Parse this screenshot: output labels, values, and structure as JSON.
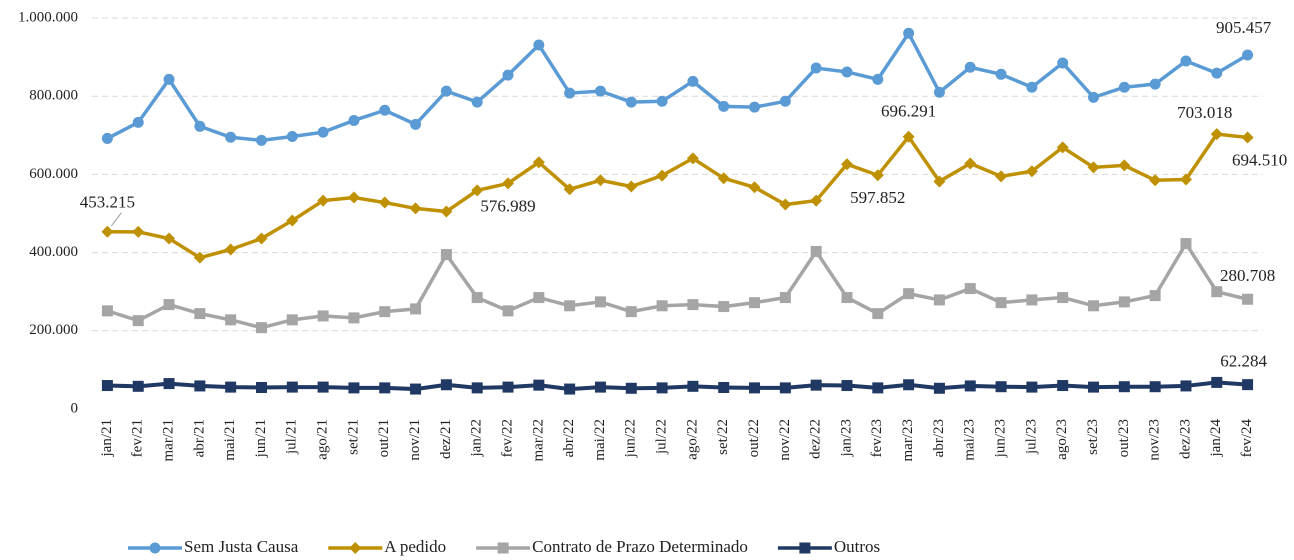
{
  "chart_data": {
    "type": "line",
    "categories": [
      "jan/21",
      "fev/21",
      "mar/21",
      "abr/21",
      "mai/21",
      "jun/21",
      "jul/21",
      "ago/21",
      "set/21",
      "out/21",
      "nov/21",
      "dez/21",
      "jan/22",
      "fev/22",
      "mar/22",
      "abr/22",
      "mai/22",
      "jun/22",
      "jul/22",
      "ago/22",
      "set/22",
      "out/22",
      "nov/22",
      "dez/22",
      "jan/23",
      "fev/23",
      "mar/23",
      "abr/23",
      "mai/23",
      "jun/23",
      "jul/23",
      "ago/23",
      "set/23",
      "out/23",
      "nov/23",
      "dez/23",
      "jan/24",
      "fev/24"
    ],
    "ylim": [
      0,
      1000000
    ],
    "yticks": [
      0,
      {
        "value": 200000,
        "label": "200.000"
      },
      {
        "value": 400000,
        "label": "400.000"
      },
      {
        "value": 600000,
        "label": "600.000"
      },
      {
        "value": 800000,
        "label": "800.000"
      },
      {
        "value": 1000000,
        "label": "1.000.000"
      }
    ],
    "grid": true,
    "legend": "bottom",
    "series": [
      {
        "name": "Sem Justa Causa",
        "color": "#5b9bd5",
        "marker": "circle",
        "values": [
          692000,
          733000,
          843000,
          723000,
          695000,
          687000,
          697000,
          708000,
          738000,
          764000,
          728000,
          813000,
          785000,
          854000,
          931000,
          808000,
          813000,
          785000,
          787000,
          838000,
          774000,
          772000,
          787000,
          872000,
          862000,
          843000,
          961000,
          810000,
          874000,
          856000,
          823000,
          885000,
          797000,
          823000,
          831000,
          890000,
          859000,
          905457
        ],
        "value_labels": [
          null,
          null,
          null,
          null,
          null,
          null,
          null,
          null,
          null,
          null,
          null,
          null,
          null,
          null,
          null,
          null,
          null,
          null,
          null,
          null,
          null,
          null,
          null,
          null,
          null,
          null,
          null,
          null,
          null,
          null,
          null,
          null,
          null,
          null,
          null,
          null,
          null,
          "905.457"
        ]
      },
      {
        "name": "A pedido",
        "color": "#bf9000",
        "marker": "diamond",
        "values": [
          453215,
          453000,
          436000,
          387000,
          408000,
          436000,
          482000,
          533000,
          541000,
          528000,
          513000,
          505000,
          559000,
          576989,
          631000,
          562000,
          585000,
          569000,
          597000,
          641000,
          590000,
          567000,
          523000,
          533000,
          626000,
          597852,
          696291,
          582000,
          628000,
          595000,
          608000,
          669000,
          618000,
          623000,
          585000,
          587000,
          703018,
          694510
        ],
        "value_labels": [
          "453.215",
          null,
          null,
          null,
          null,
          null,
          null,
          null,
          null,
          null,
          null,
          null,
          null,
          "576.989",
          null,
          null,
          null,
          null,
          null,
          null,
          null,
          null,
          null,
          null,
          null,
          "597.852",
          "696.291",
          null,
          null,
          null,
          null,
          null,
          null,
          null,
          null,
          null,
          "703.018",
          "694.510"
        ]
      },
      {
        "name": "Contrato de Prazo Determinado",
        "color": "#a5a5a5",
        "marker": "square",
        "values": [
          251000,
          226000,
          267000,
          244000,
          228000,
          208000,
          228000,
          238000,
          233000,
          249000,
          256000,
          395000,
          285000,
          251000,
          285000,
          264000,
          274000,
          249000,
          264000,
          267000,
          262000,
          272000,
          285000,
          403000,
          285000,
          244000,
          295000,
          279000,
          308000,
          272000,
          279000,
          285000,
          264000,
          274000,
          290000,
          423000,
          300000,
          280708
        ],
        "value_labels": [
          null,
          null,
          null,
          null,
          null,
          null,
          null,
          null,
          null,
          null,
          null,
          null,
          null,
          null,
          null,
          null,
          null,
          null,
          null,
          null,
          null,
          null,
          null,
          null,
          null,
          null,
          null,
          null,
          null,
          null,
          null,
          null,
          null,
          null,
          null,
          null,
          null,
          "280.708"
        ]
      },
      {
        "name": "Outros",
        "color": "#203864",
        "marker": "square",
        "values": [
          60000,
          58000,
          65000,
          59000,
          56000,
          55000,
          56000,
          56000,
          54000,
          54000,
          51000,
          62000,
          54000,
          56000,
          61000,
          51000,
          56000,
          53000,
          54000,
          58000,
          55000,
          54000,
          54000,
          61000,
          60000,
          54000,
          62000,
          53000,
          59000,
          57000,
          56000,
          60000,
          56000,
          57000,
          57000,
          59000,
          68000,
          62284
        ],
        "value_labels": [
          null,
          null,
          null,
          null,
          null,
          null,
          null,
          null,
          null,
          null,
          null,
          null,
          null,
          null,
          null,
          null,
          null,
          null,
          null,
          null,
          null,
          null,
          null,
          null,
          null,
          null,
          null,
          null,
          null,
          null,
          null,
          null,
          null,
          null,
          null,
          null,
          null,
          "62.284"
        ]
      }
    ]
  }
}
